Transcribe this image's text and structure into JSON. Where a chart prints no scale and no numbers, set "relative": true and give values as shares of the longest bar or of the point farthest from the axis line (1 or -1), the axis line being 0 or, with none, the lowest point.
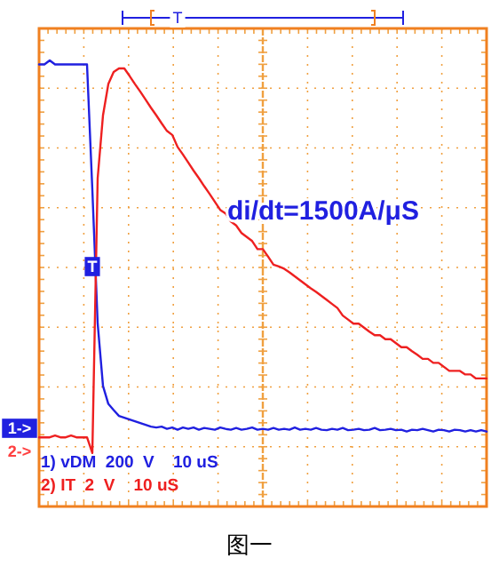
{
  "chart_data": {
    "type": "line",
    "relative": true,
    "grid": true,
    "legend": "bottom left",
    "line_style": "solid",
    "marker": "none",
    "title": "图一",
    "categories": [
      null,
      null,
      null,
      null,
      null,
      null,
      null,
      null,
      null,
      null,
      null,
      null,
      null,
      null,
      null,
      null,
      null,
      null,
      null,
      null,
      null,
      null,
      null,
      null,
      null,
      null,
      null,
      null,
      null,
      null,
      null,
      null,
      null,
      null,
      null,
      null,
      null,
      null,
      null,
      null,
      null,
      null,
      null,
      null,
      null,
      null,
      null,
      null,
      null,
      null,
      null,
      null,
      null,
      null,
      null,
      null,
      null,
      null,
      null,
      null,
      null,
      null,
      null,
      null,
      null,
      null,
      null,
      null,
      null,
      null,
      null,
      null,
      null,
      null,
      null,
      null,
      null,
      null,
      null,
      null,
      null,
      null,
      null,
      null,
      null
    ],
    "series": [
      {
        "name": "1) vDM  200  V    10 uS",
        "color": "#2020e0",
        "values": [
          0.991,
          0.991,
          1.0,
          0.991,
          0.991,
          0.991,
          0.991,
          0.991,
          0.991,
          0.991,
          0.71,
          0.41,
          0.27,
          0.23,
          0.216,
          0.203,
          0.199,
          0.195,
          0.191,
          0.187,
          0.183,
          0.179,
          0.177,
          0.179,
          0.174,
          0.177,
          0.172,
          0.177,
          0.174,
          0.177,
          0.172,
          0.176,
          0.174,
          0.172,
          0.177,
          0.174,
          0.172,
          0.176,
          0.172,
          0.174,
          0.177,
          0.172,
          0.174,
          0.172,
          0.176,
          0.172,
          0.174,
          0.172,
          0.177,
          0.172,
          0.174,
          0.172,
          0.176,
          0.172,
          0.171,
          0.174,
          0.172,
          0.176,
          0.171,
          0.172,
          0.174,
          0.171,
          0.172,
          0.176,
          0.171,
          0.172,
          0.174,
          0.171,
          0.172,
          0.168,
          0.172,
          0.171,
          0.174,
          0.171,
          0.168,
          0.172,
          0.171,
          0.168,
          0.172,
          0.171,
          0.168,
          0.171,
          0.168,
          0.171,
          0.168
        ]
      },
      {
        "name": "2) IT  2  V    10 uS",
        "color": "#ee2020",
        "values": [
          0.155,
          0.155,
          0.155,
          0.159,
          0.155,
          0.155,
          0.159,
          0.155,
          0.155,
          0.155,
          0.12,
          0.736,
          0.877,
          0.947,
          0.974,
          0.982,
          0.982,
          0.965,
          0.947,
          0.93,
          0.912,
          0.894,
          0.877,
          0.859,
          0.842,
          0.833,
          0.806,
          0.789,
          0.771,
          0.753,
          0.736,
          0.718,
          0.701,
          0.683,
          0.665,
          0.657,
          0.639,
          0.63,
          0.613,
          0.604,
          0.595,
          0.577,
          0.577,
          0.56,
          0.542,
          0.538,
          0.533,
          0.525,
          0.516,
          0.507,
          0.498,
          0.489,
          0.481,
          0.472,
          0.463,
          0.454,
          0.445,
          0.428,
          0.419,
          0.41,
          0.41,
          0.401,
          0.392,
          0.384,
          0.384,
          0.375,
          0.375,
          0.366,
          0.357,
          0.357,
          0.348,
          0.34,
          0.331,
          0.331,
          0.322,
          0.322,
          0.313,
          0.304,
          0.304,
          0.304,
          0.296,
          0.296,
          0.287,
          0.287,
          0.287
        ]
      }
    ],
    "annotations": [
      "di/dt=1500A/μS",
      "T",
      "T",
      "1->",
      "2->"
    ]
  }
}
